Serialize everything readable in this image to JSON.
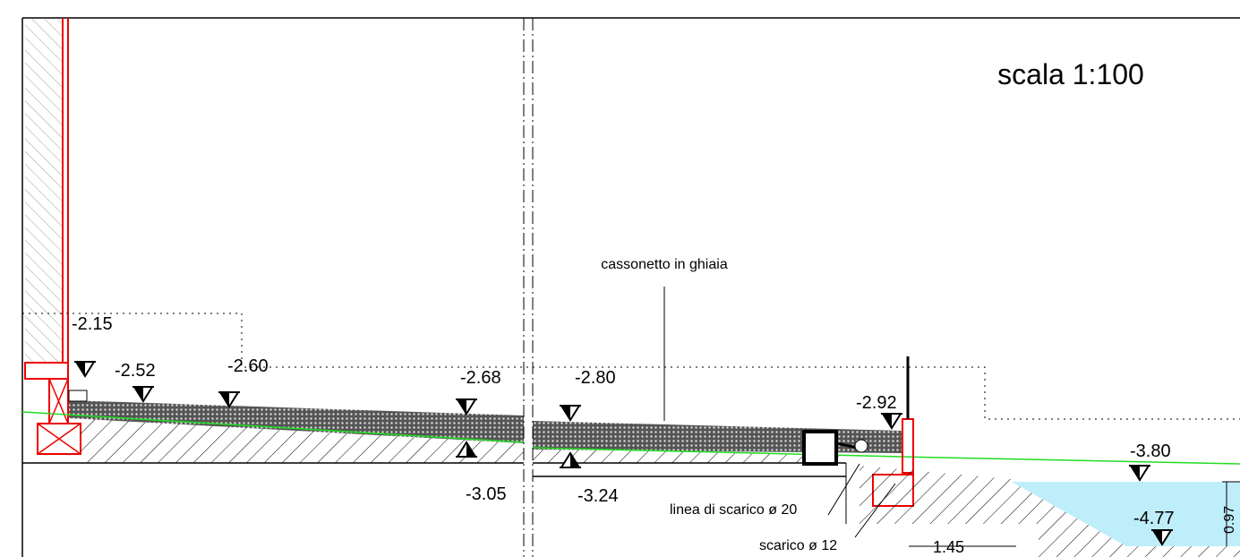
{
  "title": "scala 1:100",
  "annotations": {
    "gravel": "cassonetto in ghiaia",
    "drain_line": "linea di scarico ø 20",
    "drain": "scarico ø 12"
  },
  "levels": [
    "-2.15",
    "-2.52",
    "-2.60",
    "-2.68",
    "-2.80",
    "-2.92",
    "-3.05",
    "-3.24",
    "-3.80",
    "-4.77"
  ],
  "dimensions": [
    "1.45",
    "0.97"
  ]
}
